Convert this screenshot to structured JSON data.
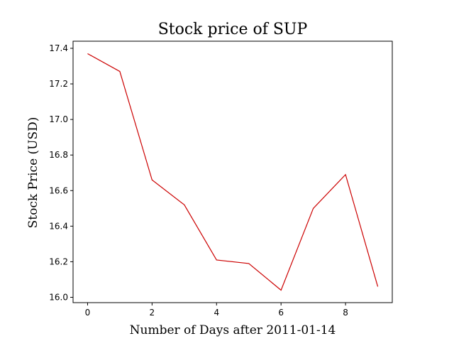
{
  "chart_data": {
    "type": "line",
    "title": "Stock price of SUP",
    "xlabel": "Number of Days after 2011-01-14",
    "ylabel": "Stock Price (USD)",
    "x": [
      0,
      1,
      2,
      3,
      4,
      5,
      6,
      7,
      8,
      9
    ],
    "series": [
      {
        "values": [
          17.37,
          17.27,
          16.66,
          16.52,
          16.21,
          16.19,
          16.04,
          16.5,
          16.69,
          16.06
        ],
        "color": "#cc0000"
      }
    ],
    "xlim": [
      -0.45,
      9.45
    ],
    "ylim": [
      15.97,
      17.44
    ],
    "xticks": [
      0,
      2,
      4,
      6,
      8
    ],
    "yticks": [
      16.0,
      16.2,
      16.4,
      16.6,
      16.8,
      17.0,
      17.2,
      17.4
    ],
    "xtick_labels": [
      "0",
      "2",
      "4",
      "6",
      "8"
    ],
    "ytick_labels": [
      "16.0",
      "16.2",
      "16.4",
      "16.6",
      "16.8",
      "17.0",
      "17.2",
      "17.4"
    ],
    "grid": false,
    "legend": "none"
  }
}
